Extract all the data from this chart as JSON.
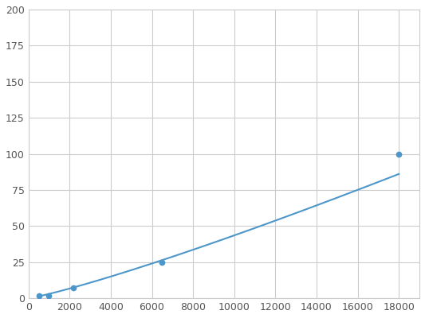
{
  "x": [
    500,
    1000,
    2200,
    6500,
    18000
  ],
  "y": [
    2.0,
    2.0,
    7.0,
    25.0,
    100.0
  ],
  "line_color": "#4d96c9",
  "marker_style": "o",
  "marker_size": 4.5,
  "line_width": 1.5,
  "xlim": [
    0,
    19000
  ],
  "ylim": [
    0,
    200
  ],
  "xticks": [
    0,
    2000,
    4000,
    6000,
    8000,
    10000,
    12000,
    14000,
    16000,
    18000
  ],
  "yticks": [
    0,
    25,
    50,
    75,
    100,
    125,
    150,
    175,
    200
  ],
  "grid_color": "#cccccc",
  "background_color": "#ffffff",
  "tick_label_fontsize": 9,
  "tick_label_color": "#555555"
}
